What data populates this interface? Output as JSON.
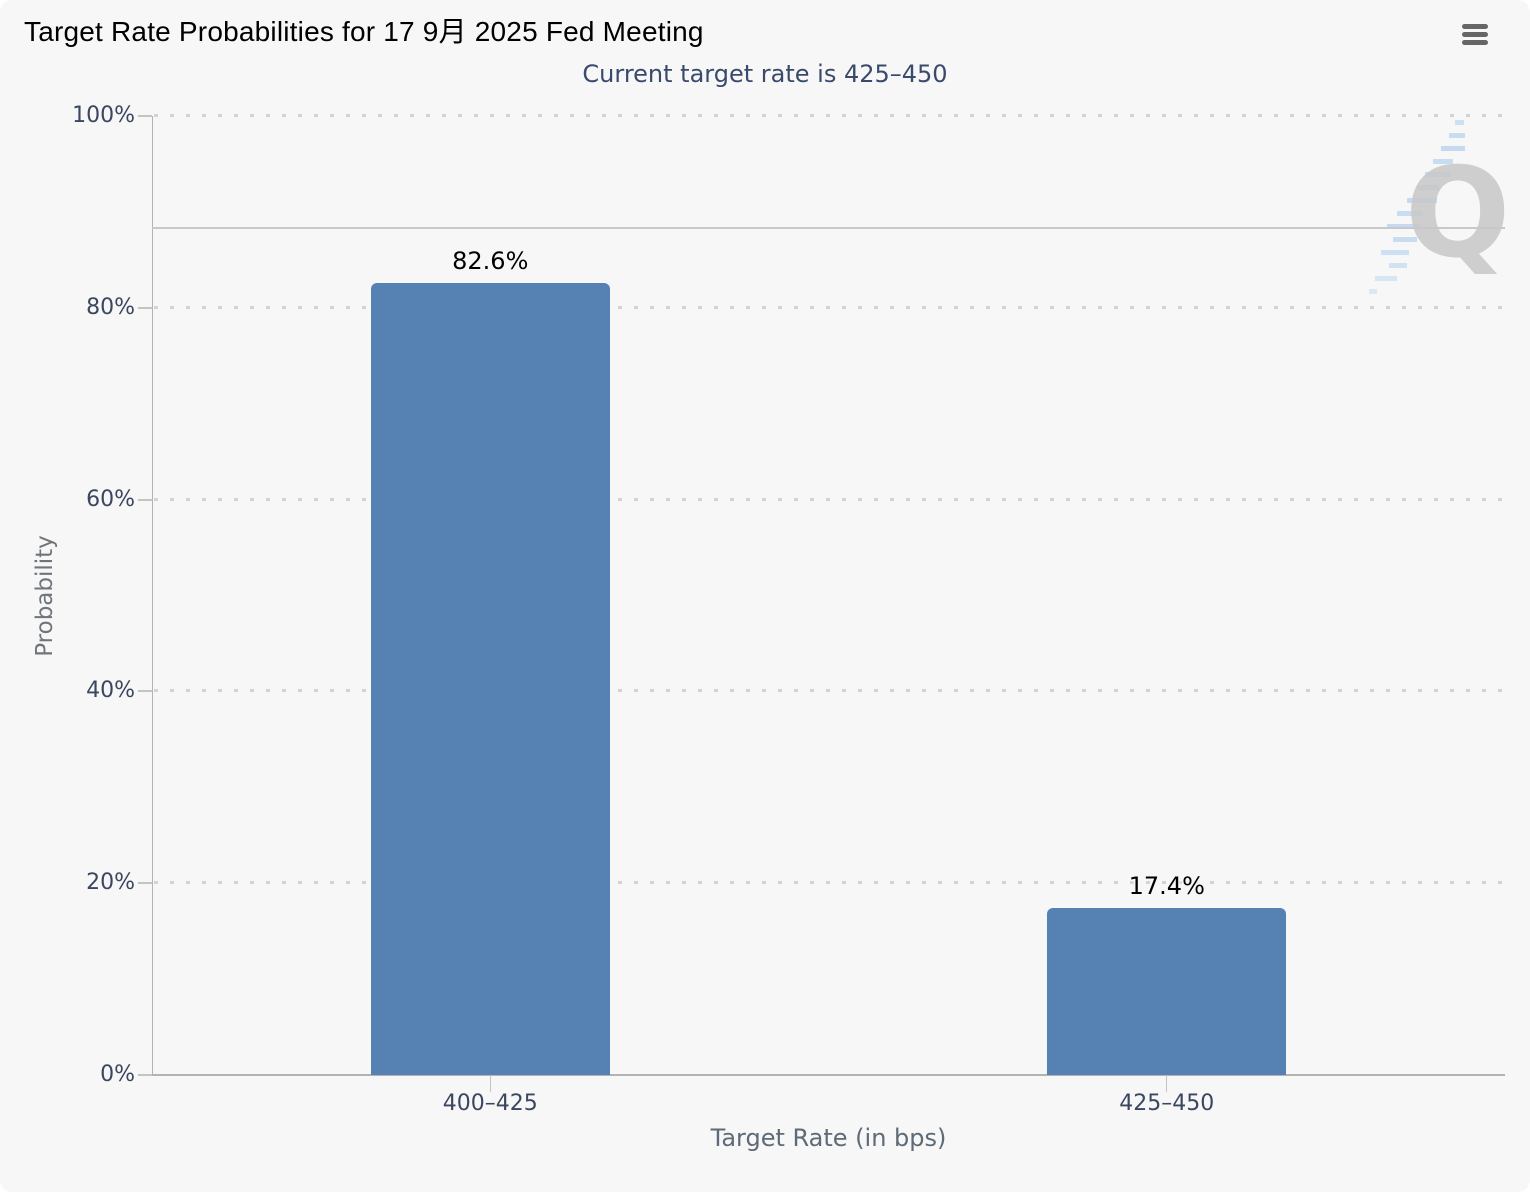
{
  "chart": {
    "background_color": "#f7f7f7",
    "context_menu_icon": "hamburger-icon"
  },
  "chart_data": {
    "type": "bar",
    "title": "Target Rate Probabilities for 17 9月 2025 Fed Meeting",
    "subtitle": "Current target rate is 425–450",
    "xlabel": "Target Rate (in bps)",
    "ylabel": "Probability",
    "categories": [
      "400–425",
      "425–450"
    ],
    "values": [
      82.6,
      17.4
    ],
    "data_labels": [
      "82.6%",
      "17.4%"
    ],
    "ylim": [
      0,
      100
    ],
    "y_ticks": [
      {
        "value": 0,
        "label": "0%"
      },
      {
        "value": 20,
        "label": "20%"
      },
      {
        "value": 40,
        "label": "40%"
      },
      {
        "value": 60,
        "label": "60%"
      },
      {
        "value": 80,
        "label": "80%"
      },
      {
        "value": 100,
        "label": "100%"
      }
    ],
    "reference_line_value": 88.3,
    "bar_color": "#5581b3",
    "grid": "dotted-horizontal",
    "legend_position": "none",
    "watermark": "quikstrike-q-logo"
  }
}
